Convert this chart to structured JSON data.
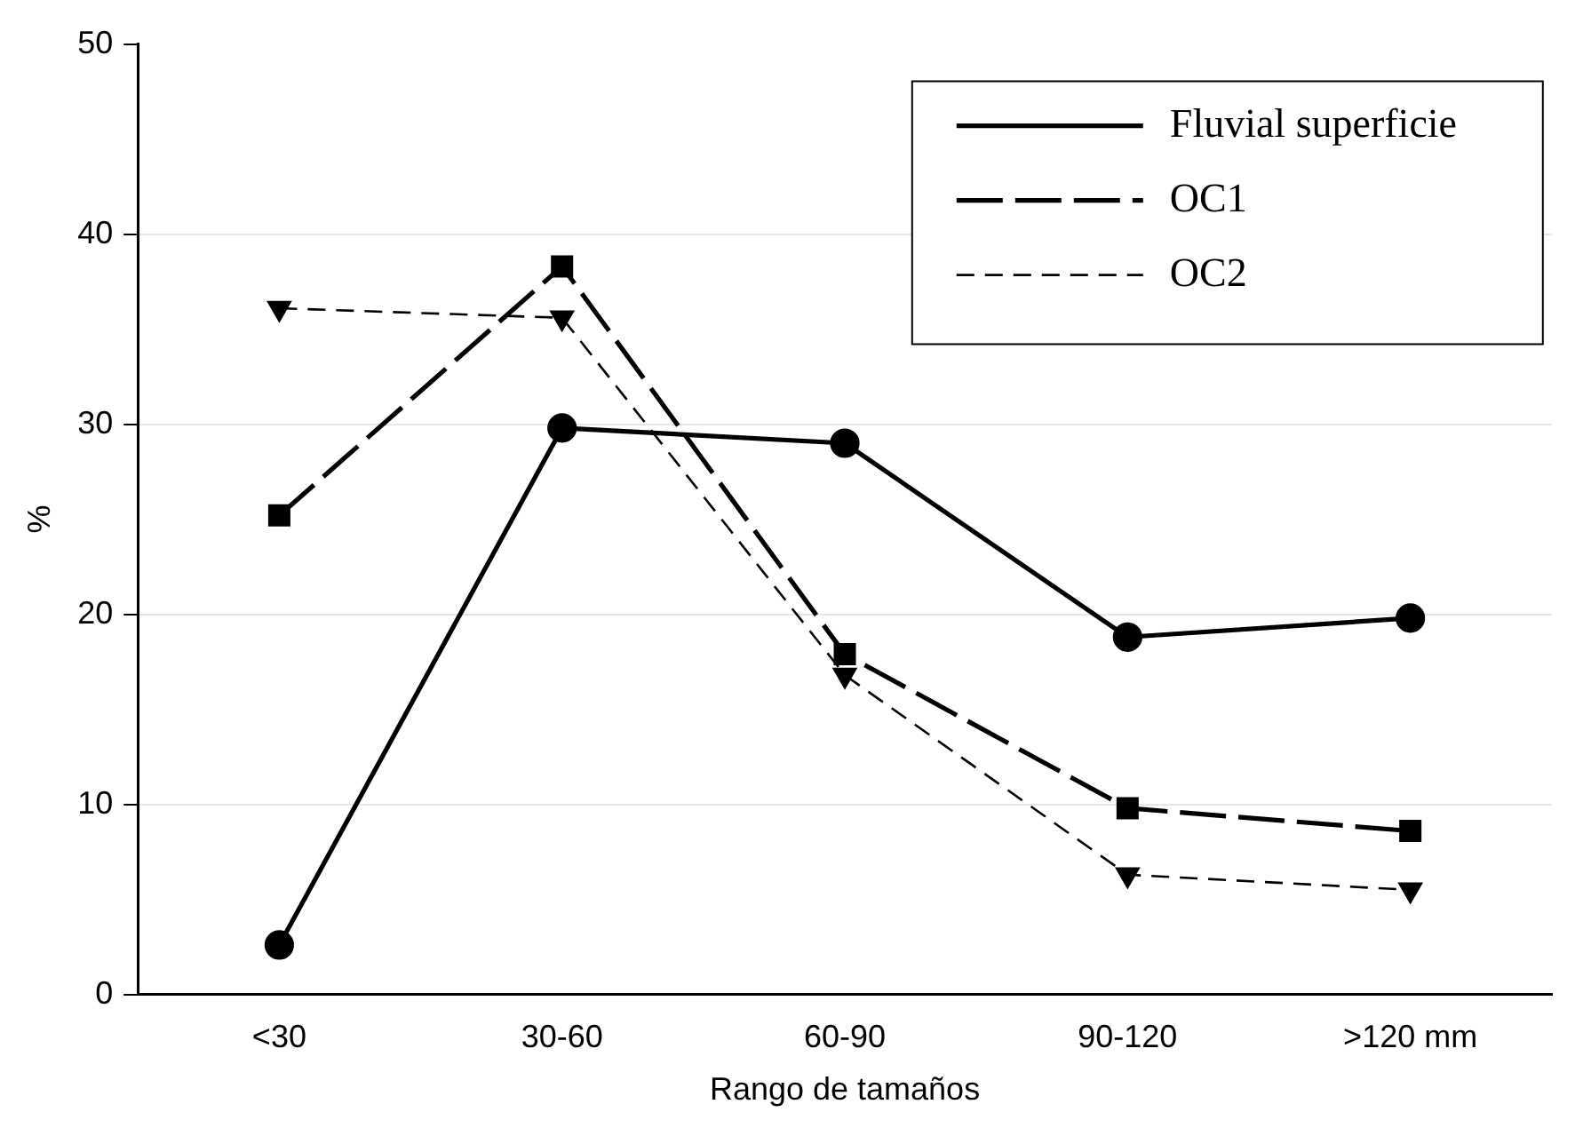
{
  "chart_data": {
    "type": "line",
    "xlabel": "Rango de tamaños",
    "ylabel": "%",
    "categories": [
      "<30",
      "30-60",
      "60-90",
      "90-120",
      ">120 mm"
    ],
    "series": [
      {
        "name": "Fluvial superficie",
        "color": "#000000",
        "values": [
          2.6,
          29.8,
          29.0,
          18.8,
          19.8
        ],
        "marker": "circle",
        "line_style": "solid"
      },
      {
        "name": "OC1",
        "color": "#000000",
        "values": [
          25.2,
          38.3,
          17.9,
          9.8,
          8.6
        ],
        "marker": "square",
        "line_style": "dashed"
      },
      {
        "name": "OC2",
        "color": "#000000",
        "values": [
          36.1,
          35.6,
          16.8,
          6.3,
          5.5
        ],
        "marker": "triangle",
        "line_style": "dashed"
      }
    ],
    "ylim": [
      0,
      50
    ],
    "yticks": [
      0,
      10,
      20,
      30,
      40,
      50
    ],
    "grid": "y",
    "legend": "top right"
  }
}
